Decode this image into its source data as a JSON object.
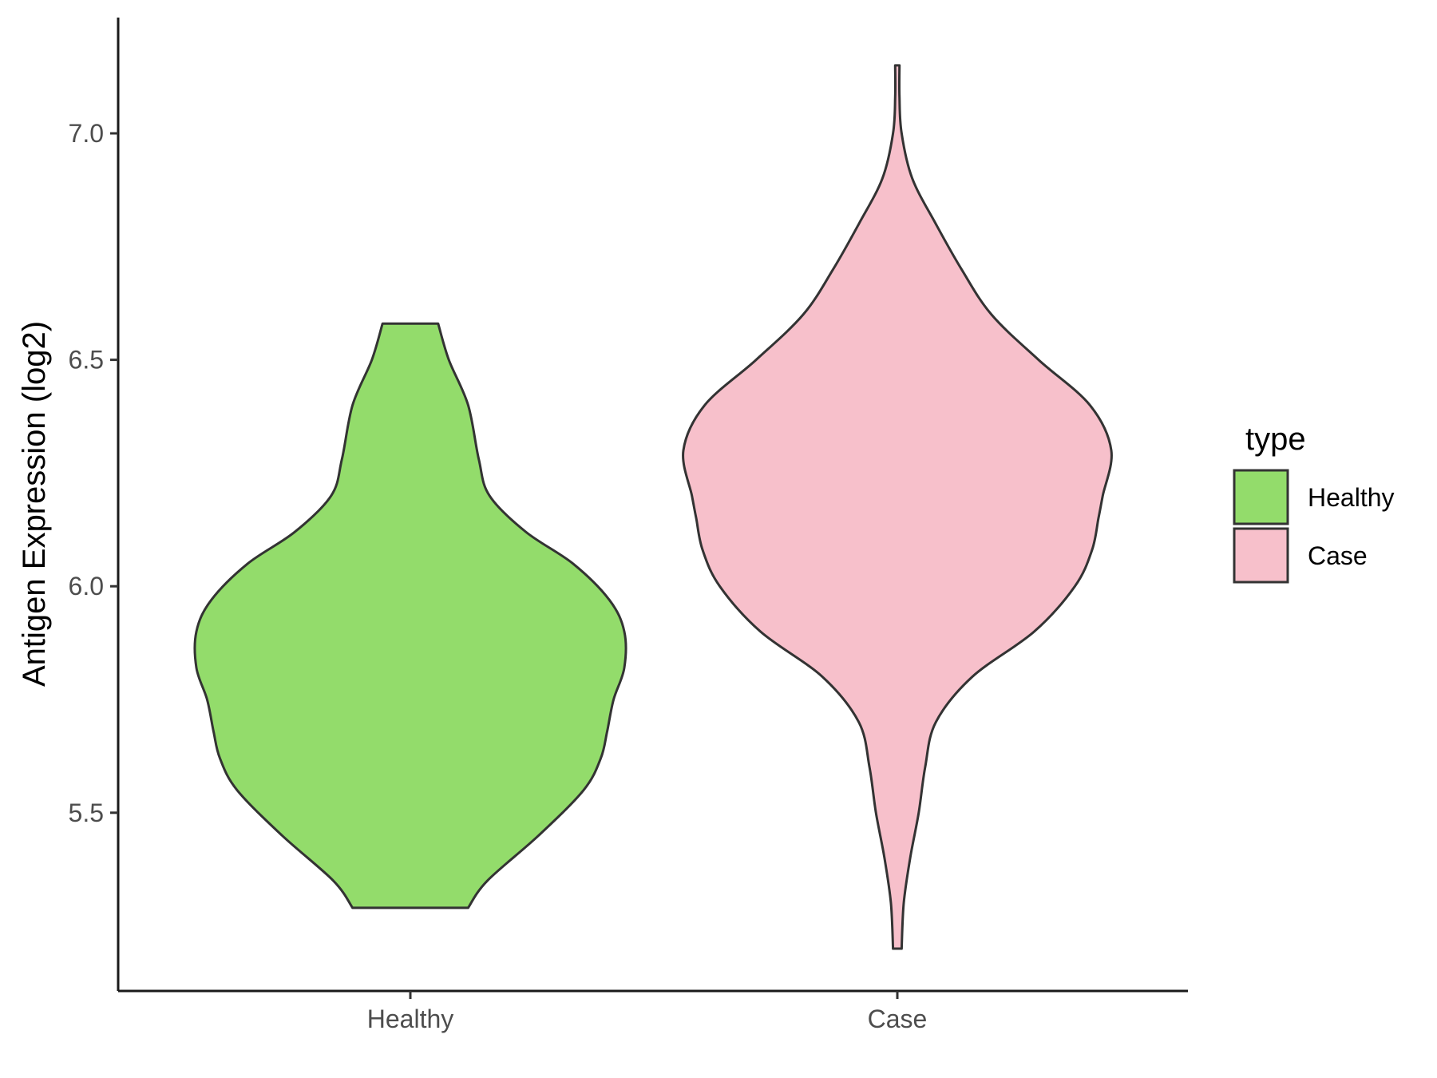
{
  "chart_data": {
    "type": "violin",
    "xlabel": "",
    "ylabel": "Antigen Expression (log2)",
    "ylim": [
      5.1,
      7.25
    ],
    "yticks": [
      5.5,
      6.0,
      6.5,
      7.0
    ],
    "ytick_labels": [
      "5.5",
      "6.0",
      "6.5",
      "7.0"
    ],
    "categories": [
      "Healthy",
      "Case"
    ],
    "grid": false,
    "legend": {
      "title": "type",
      "position": "right",
      "entries": [
        {
          "label": "Healthy",
          "color": "#93dc6b"
        },
        {
          "label": "Case",
          "color": "#f7c0cb"
        }
      ]
    },
    "series": [
      {
        "category": "Healthy",
        "color": "#93dc6b",
        "min": 5.29,
        "max": 6.58,
        "profile": [
          [
            5.29,
            0.27
          ],
          [
            5.35,
            0.36
          ],
          [
            5.45,
            0.6
          ],
          [
            5.55,
            0.81
          ],
          [
            5.62,
            0.89
          ],
          [
            5.68,
            0.92
          ],
          [
            5.75,
            0.95
          ],
          [
            5.82,
            1.0
          ],
          [
            5.9,
            1.0
          ],
          [
            5.97,
            0.93
          ],
          [
            6.05,
            0.76
          ],
          [
            6.12,
            0.54
          ],
          [
            6.2,
            0.37
          ],
          [
            6.28,
            0.32
          ],
          [
            6.4,
            0.27
          ],
          [
            6.5,
            0.18
          ],
          [
            6.58,
            0.13
          ]
        ]
      },
      {
        "category": "Case",
        "color": "#f7c0cb",
        "min": 5.2,
        "max": 7.15,
        "profile": [
          [
            5.2,
            0.02
          ],
          [
            5.3,
            0.03
          ],
          [
            5.4,
            0.06
          ],
          [
            5.5,
            0.1
          ],
          [
            5.6,
            0.13
          ],
          [
            5.7,
            0.18
          ],
          [
            5.8,
            0.35
          ],
          [
            5.9,
            0.64
          ],
          [
            6.0,
            0.83
          ],
          [
            6.08,
            0.91
          ],
          [
            6.15,
            0.94
          ],
          [
            6.2,
            0.96
          ],
          [
            6.3,
            1.0
          ],
          [
            6.4,
            0.9
          ],
          [
            6.5,
            0.66
          ],
          [
            6.6,
            0.44
          ],
          [
            6.7,
            0.3
          ],
          [
            6.8,
            0.18
          ],
          [
            6.9,
            0.07
          ],
          [
            7.0,
            0.02
          ],
          [
            7.08,
            0.01
          ],
          [
            7.15,
            0.01
          ]
        ]
      }
    ]
  }
}
